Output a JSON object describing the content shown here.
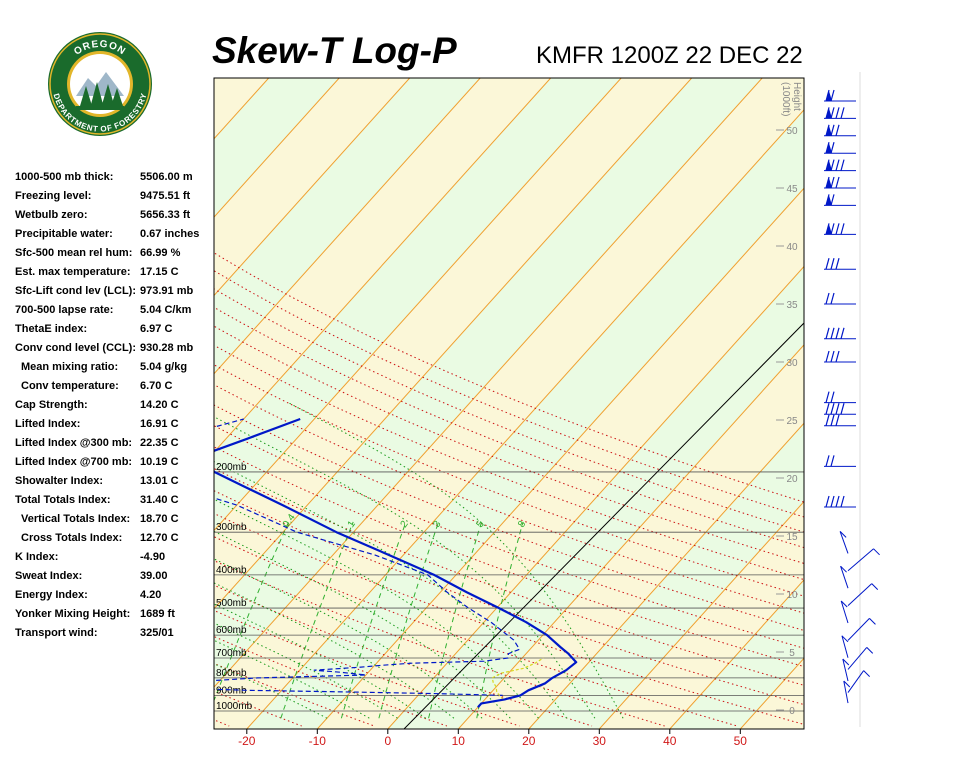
{
  "header": {
    "title": "Skew-T Log-P",
    "station_time": "KMFR 1200Z 22 DEC 22"
  },
  "logo": {
    "top_text": "OREGON",
    "bottom_text": "DEPARTMENT OF FORESTRY",
    "ring_color": "#1a6b2c",
    "gold_color": "#e2b62a"
  },
  "indices": [
    {
      "label": "1000-500 mb thick:",
      "value": "5506.00 m",
      "indent": false
    },
    {
      "label": "Freezing level:",
      "value": "9475.51 ft",
      "indent": false
    },
    {
      "label": "Wetbulb zero:",
      "value": "5656.33 ft",
      "indent": false
    },
    {
      "label": "Precipitable water:",
      "value": "0.67 inches",
      "indent": false
    },
    {
      "label": "Sfc-500 mean rel hum:",
      "value": "66.99 %",
      "indent": false
    },
    {
      "label": "Est. max temperature:",
      "value": "17.15 C",
      "indent": false
    },
    {
      "label": "Sfc-Lift cond lev (LCL):",
      "value": "973.91 mb",
      "indent": false
    },
    {
      "label": "700-500 lapse rate:",
      "value": "5.04 C/km",
      "indent": false
    },
    {
      "label": "ThetaE index:",
      "value": "6.97 C",
      "indent": false
    },
    {
      "label": "Conv cond level (CCL):",
      "value": "930.28 mb",
      "indent": false
    },
    {
      "label": "Mean mixing ratio:",
      "value": "5.04 g/kg",
      "indent": true
    },
    {
      "label": "Conv temperature:",
      "value": "6.70 C",
      "indent": true
    },
    {
      "label": "Cap Strength:",
      "value": "14.20 C",
      "indent": false
    },
    {
      "label": "Lifted Index:",
      "value": "16.91 C",
      "indent": false
    },
    {
      "label": "Lifted Index @300 mb:",
      "value": "22.35 C",
      "indent": false
    },
    {
      "label": "Lifted Index @700 mb:",
      "value": "10.19 C",
      "indent": false
    },
    {
      "label": "Showalter Index:",
      "value": "13.01 C",
      "indent": false
    },
    {
      "label": "Total Totals Index:",
      "value": "31.40 C",
      "indent": false
    },
    {
      "label": "Vertical Totals Index:",
      "value": "18.70 C",
      "indent": true
    },
    {
      "label": "Cross Totals Index:",
      "value": "12.70 C",
      "indent": true
    },
    {
      "label": "K Index:",
      "value": "-4.90",
      "indent": false
    },
    {
      "label": "Sweat Index:",
      "value": "39.00",
      "indent": false
    },
    {
      "label": "Energy Index:",
      "value": "4.20",
      "indent": false
    },
    {
      "label": "Yonker Mixing Height:",
      "value": "1689 ft",
      "indent": false
    },
    {
      "label": "Transport wind:",
      "value": "325/01",
      "indent": false
    }
  ],
  "chart_data": {
    "type": "line",
    "colors": {
      "background_green": "#eafbe3",
      "background_yellow": "#fbf7d8",
      "temperature": "#0018c8",
      "dewpoint": "#0018c8",
      "parcel": "#d8d820",
      "isotherm": "#f0a030",
      "dry_adiabat": "#cc1010",
      "moist_adiabat": "#1a9a1a",
      "mixing_ratio": "#30b030",
      "isobar": "#555555",
      "wind_barbs": "#0018c8"
    },
    "x_axis": {
      "ticks": [
        -20,
        -10,
        0,
        10,
        20,
        30,
        40,
        50
      ],
      "tick_labels": [
        "-20",
        "-10",
        "0",
        "10",
        "20",
        "30",
        "40",
        "50"
      ]
    },
    "isobars": [
      200,
      300,
      400,
      500,
      600,
      700,
      800,
      900,
      1000
    ],
    "isobar_labels": [
      "200mb",
      "300mb",
      "400mb",
      "500mb",
      "600mb",
      "700mb",
      "800mb",
      "900mb",
      "1000mb"
    ],
    "height_axis": {
      "title_line1": "Height",
      "title_line2": "(1000ft)",
      "ticks": [
        0,
        5,
        10,
        15,
        20,
        25,
        30,
        35,
        40,
        45,
        50
      ],
      "tick_labels": [
        "0",
        "5",
        "10",
        "15",
        "20",
        "25",
        "30",
        "35",
        "40",
        "45",
        "50"
      ]
    },
    "mixing_ratio_labels": [
      0.4,
      1,
      2,
      3,
      5,
      8
    ],
    "temperature_profile": [
      {
        "p": 975,
        "t": 10.0
      },
      {
        "p": 950,
        "t": 10.0
      },
      {
        "p": 925,
        "t": 12.8
      },
      {
        "p": 900,
        "t": 14.5
      },
      {
        "p": 870,
        "t": 15.0
      },
      {
        "p": 830,
        "t": 16.5
      },
      {
        "p": 800,
        "t": 16.8
      },
      {
        "p": 760,
        "t": 17.8
      },
      {
        "p": 720,
        "t": 18.2
      },
      {
        "p": 680,
        "t": 16.0
      },
      {
        "p": 650,
        "t": 14.0
      },
      {
        "p": 600,
        "t": 10.6
      },
      {
        "p": 550,
        "t": 6.0
      },
      {
        "p": 500,
        "t": 0.3
      },
      {
        "p": 450,
        "t": -6.2
      },
      {
        "p": 400,
        "t": -13.1
      },
      {
        "p": 350,
        "t": -22.0
      },
      {
        "p": 300,
        "t": -32.4
      },
      {
        "p": 250,
        "t": -43.5
      },
      {
        "p": 220,
        "t": -51.5
      },
      {
        "p": 200,
        "t": -57.4
      },
      {
        "p": 180,
        "t": -61.5
      },
      {
        "p": 175,
        "t": -60.5
      },
      {
        "p": 160,
        "t": -57.0
      },
      {
        "p": 140,
        "t": -52.0
      }
    ],
    "dewpoint_profile": [
      {
        "p": 900,
        "t": 12.0
      },
      {
        "p": 890,
        "t": 3.0
      },
      {
        "p": 880,
        "t": -10.0
      },
      {
        "p": 870,
        "t": -25.0
      },
      {
        "p": 860,
        "t": -33.0
      },
      {
        "p": 850,
        "t": -40.0
      },
      {
        "p": 840,
        "t": -35.0
      },
      {
        "p": 820,
        "t": -33.0
      },
      {
        "p": 800,
        "t": -25.0
      },
      {
        "p": 785,
        "t": -10.0
      },
      {
        "p": 770,
        "t": -14.0
      },
      {
        "p": 760,
        "t": -18.0
      },
      {
        "p": 745,
        "t": -12.0
      },
      {
        "p": 735,
        "t": -9.0
      },
      {
        "p": 725,
        "t": -5.0
      },
      {
        "p": 715,
        "t": 5.0
      },
      {
        "p": 700,
        "t": 8.0
      },
      {
        "p": 680,
        "t": 7.5
      },
      {
        "p": 660,
        "t": 8.5
      },
      {
        "p": 620,
        "t": 6.5
      },
      {
        "p": 550,
        "t": 1.0
      },
      {
        "p": 500,
        "t": -4.0
      },
      {
        "p": 450,
        "t": -9.0
      },
      {
        "p": 400,
        "t": -14.0
      },
      {
        "p": 350,
        "t": -24.0
      },
      {
        "p": 300,
        "t": -38.0
      },
      {
        "p": 250,
        "t": -50.0
      },
      {
        "p": 220,
        "t": -61.0
      },
      {
        "p": 200,
        "t": -67.0
      },
      {
        "p": 185,
        "t": -68.0
      },
      {
        "p": 175,
        "t": -67.0
      },
      {
        "p": 165,
        "t": -67.0
      },
      {
        "p": 150,
        "t": -64.0
      },
      {
        "p": 140,
        "t": -60.0
      }
    ],
    "parcel_path": [
      {
        "p": 925,
        "t": 12.6
      },
      {
        "p": 900,
        "t": 11.5
      },
      {
        "p": 875,
        "t": 10.6
      },
      {
        "p": 850,
        "t": 10.0
      },
      {
        "p": 825,
        "t": 9.0
      },
      {
        "p": 800,
        "t": 8.3
      },
      {
        "p": 775,
        "t": 9.0
      },
      {
        "p": 750,
        "t": 11.5
      },
      {
        "p": 725,
        "t": 12.5
      },
      {
        "p": 700,
        "t": 13.0
      }
    ],
    "wind_barbs_heights_kft": [
      0.6,
      1.5,
      2.5,
      3.5,
      4.5,
      6,
      7.5,
      9,
      10.5,
      12,
      13.5,
      17.5,
      21,
      24.5,
      25.5,
      26.5,
      30,
      32,
      35,
      38,
      41,
      43.5,
      45,
      46.5,
      48,
      49.5,
      51,
      52.5
    ]
  }
}
